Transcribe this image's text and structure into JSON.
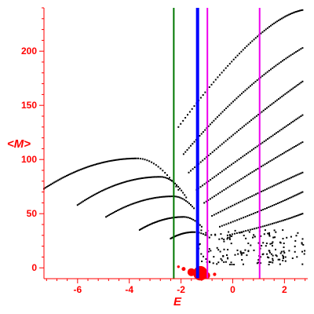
{
  "colors": {
    "axis": "#ff0000",
    "dots": "#000000",
    "green_line": "#007700",
    "blue_line": "#0000ff",
    "magenta_line": "#ee00ee",
    "blob": "#ff0000"
  },
  "chart_data": {
    "type": "scatter",
    "title": "",
    "xlabel": "E",
    "ylabel": "<M>",
    "xlim": [
      -7.3,
      2.9
    ],
    "ylim": [
      -10,
      240
    ],
    "grid": false,
    "xticks": [
      -6,
      -4,
      -2,
      0,
      2
    ],
    "yticks": [
      0,
      50,
      100,
      150,
      200
    ],
    "xtick_labels": [
      "-6",
      "-4",
      "-2",
      "0",
      "2"
    ],
    "ytick_labels": [
      "0",
      "50",
      "100",
      "150",
      "200"
    ],
    "vertical_lines": [
      {
        "x": -2.28,
        "color": "green"
      },
      {
        "x": -1.36,
        "color": "blue"
      },
      {
        "x": -0.98,
        "color": "magenta"
      },
      {
        "x": 1.04,
        "color": "magenta"
      }
    ],
    "curves": [
      {
        "x0": -7.3,
        "y0": 73,
        "x_peak": -3.7,
        "y_peak": 101,
        "x_end": -2.1,
        "y_end": 72,
        "n": 85
      },
      {
        "x0": -6.0,
        "y0": 58,
        "x_peak": -2.8,
        "y_peak": 84,
        "x_end": -1.8,
        "y_end": 65,
        "n": 75
      },
      {
        "x0": -4.9,
        "y0": 47,
        "x_peak": -2.3,
        "y_peak": 66,
        "x_end": -1.5,
        "y_end": 55,
        "n": 60
      },
      {
        "x0": -3.6,
        "y0": 35,
        "x_peak": -1.9,
        "y_peak": 47,
        "x_end": -1.2,
        "y_end": 38,
        "n": 50
      },
      {
        "x0": -2.4,
        "y0": 27,
        "x_peak": -1.5,
        "y_peak": 33,
        "x_end": -0.9,
        "y_end": 28,
        "n": 35
      }
    ],
    "rising_branches": [
      {
        "x0": -2.1,
        "y0": 130,
        "x1": 1.0,
        "y1": 230,
        "x2": 2.7,
        "y2": 238,
        "n": 70
      },
      {
        "x0": -1.9,
        "y0": 105,
        "x1": 0.5,
        "y1": 172,
        "x2": 2.7,
        "y2": 203,
        "n": 70
      },
      {
        "x0": -1.7,
        "y0": 88,
        "x1": 0.8,
        "y1": 140,
        "x2": 2.7,
        "y2": 172,
        "n": 65
      },
      {
        "x0": -1.4,
        "y0": 72,
        "x1": 0.9,
        "y1": 112,
        "x2": 2.7,
        "y2": 141,
        "n": 60
      },
      {
        "x0": -1.1,
        "y0": 60,
        "x1": 1.0,
        "y1": 93,
        "x2": 2.7,
        "y2": 116,
        "n": 55
      },
      {
        "x0": -0.8,
        "y0": 48,
        "x1": 1.2,
        "y1": 72,
        "x2": 2.7,
        "y2": 88,
        "n": 50
      },
      {
        "x0": -0.5,
        "y0": 38,
        "x1": 1.4,
        "y1": 55,
        "x2": 2.7,
        "y2": 70,
        "n": 45
      },
      {
        "x0": -0.2,
        "y0": 30,
        "x1": 1.6,
        "y1": 40,
        "x2": 2.7,
        "y2": 50,
        "n": 40
      }
    ],
    "low_cluster": {
      "x_range": [
        -1.4,
        2.8
      ],
      "y_range": [
        3,
        35
      ],
      "n": 170
    },
    "blobs": [
      {
        "x": -1.25,
        "y": -5,
        "r": 2.2
      },
      {
        "x": -1.6,
        "y": -4,
        "r": 1.2
      },
      {
        "x": -1.0,
        "y": -7,
        "r": 1.0
      },
      {
        "x": -1.9,
        "y": -1,
        "r": 0.6
      },
      {
        "x": -0.7,
        "y": -6,
        "r": 0.5
      },
      {
        "x": -2.1,
        "y": 1,
        "r": 0.4
      }
    ]
  }
}
